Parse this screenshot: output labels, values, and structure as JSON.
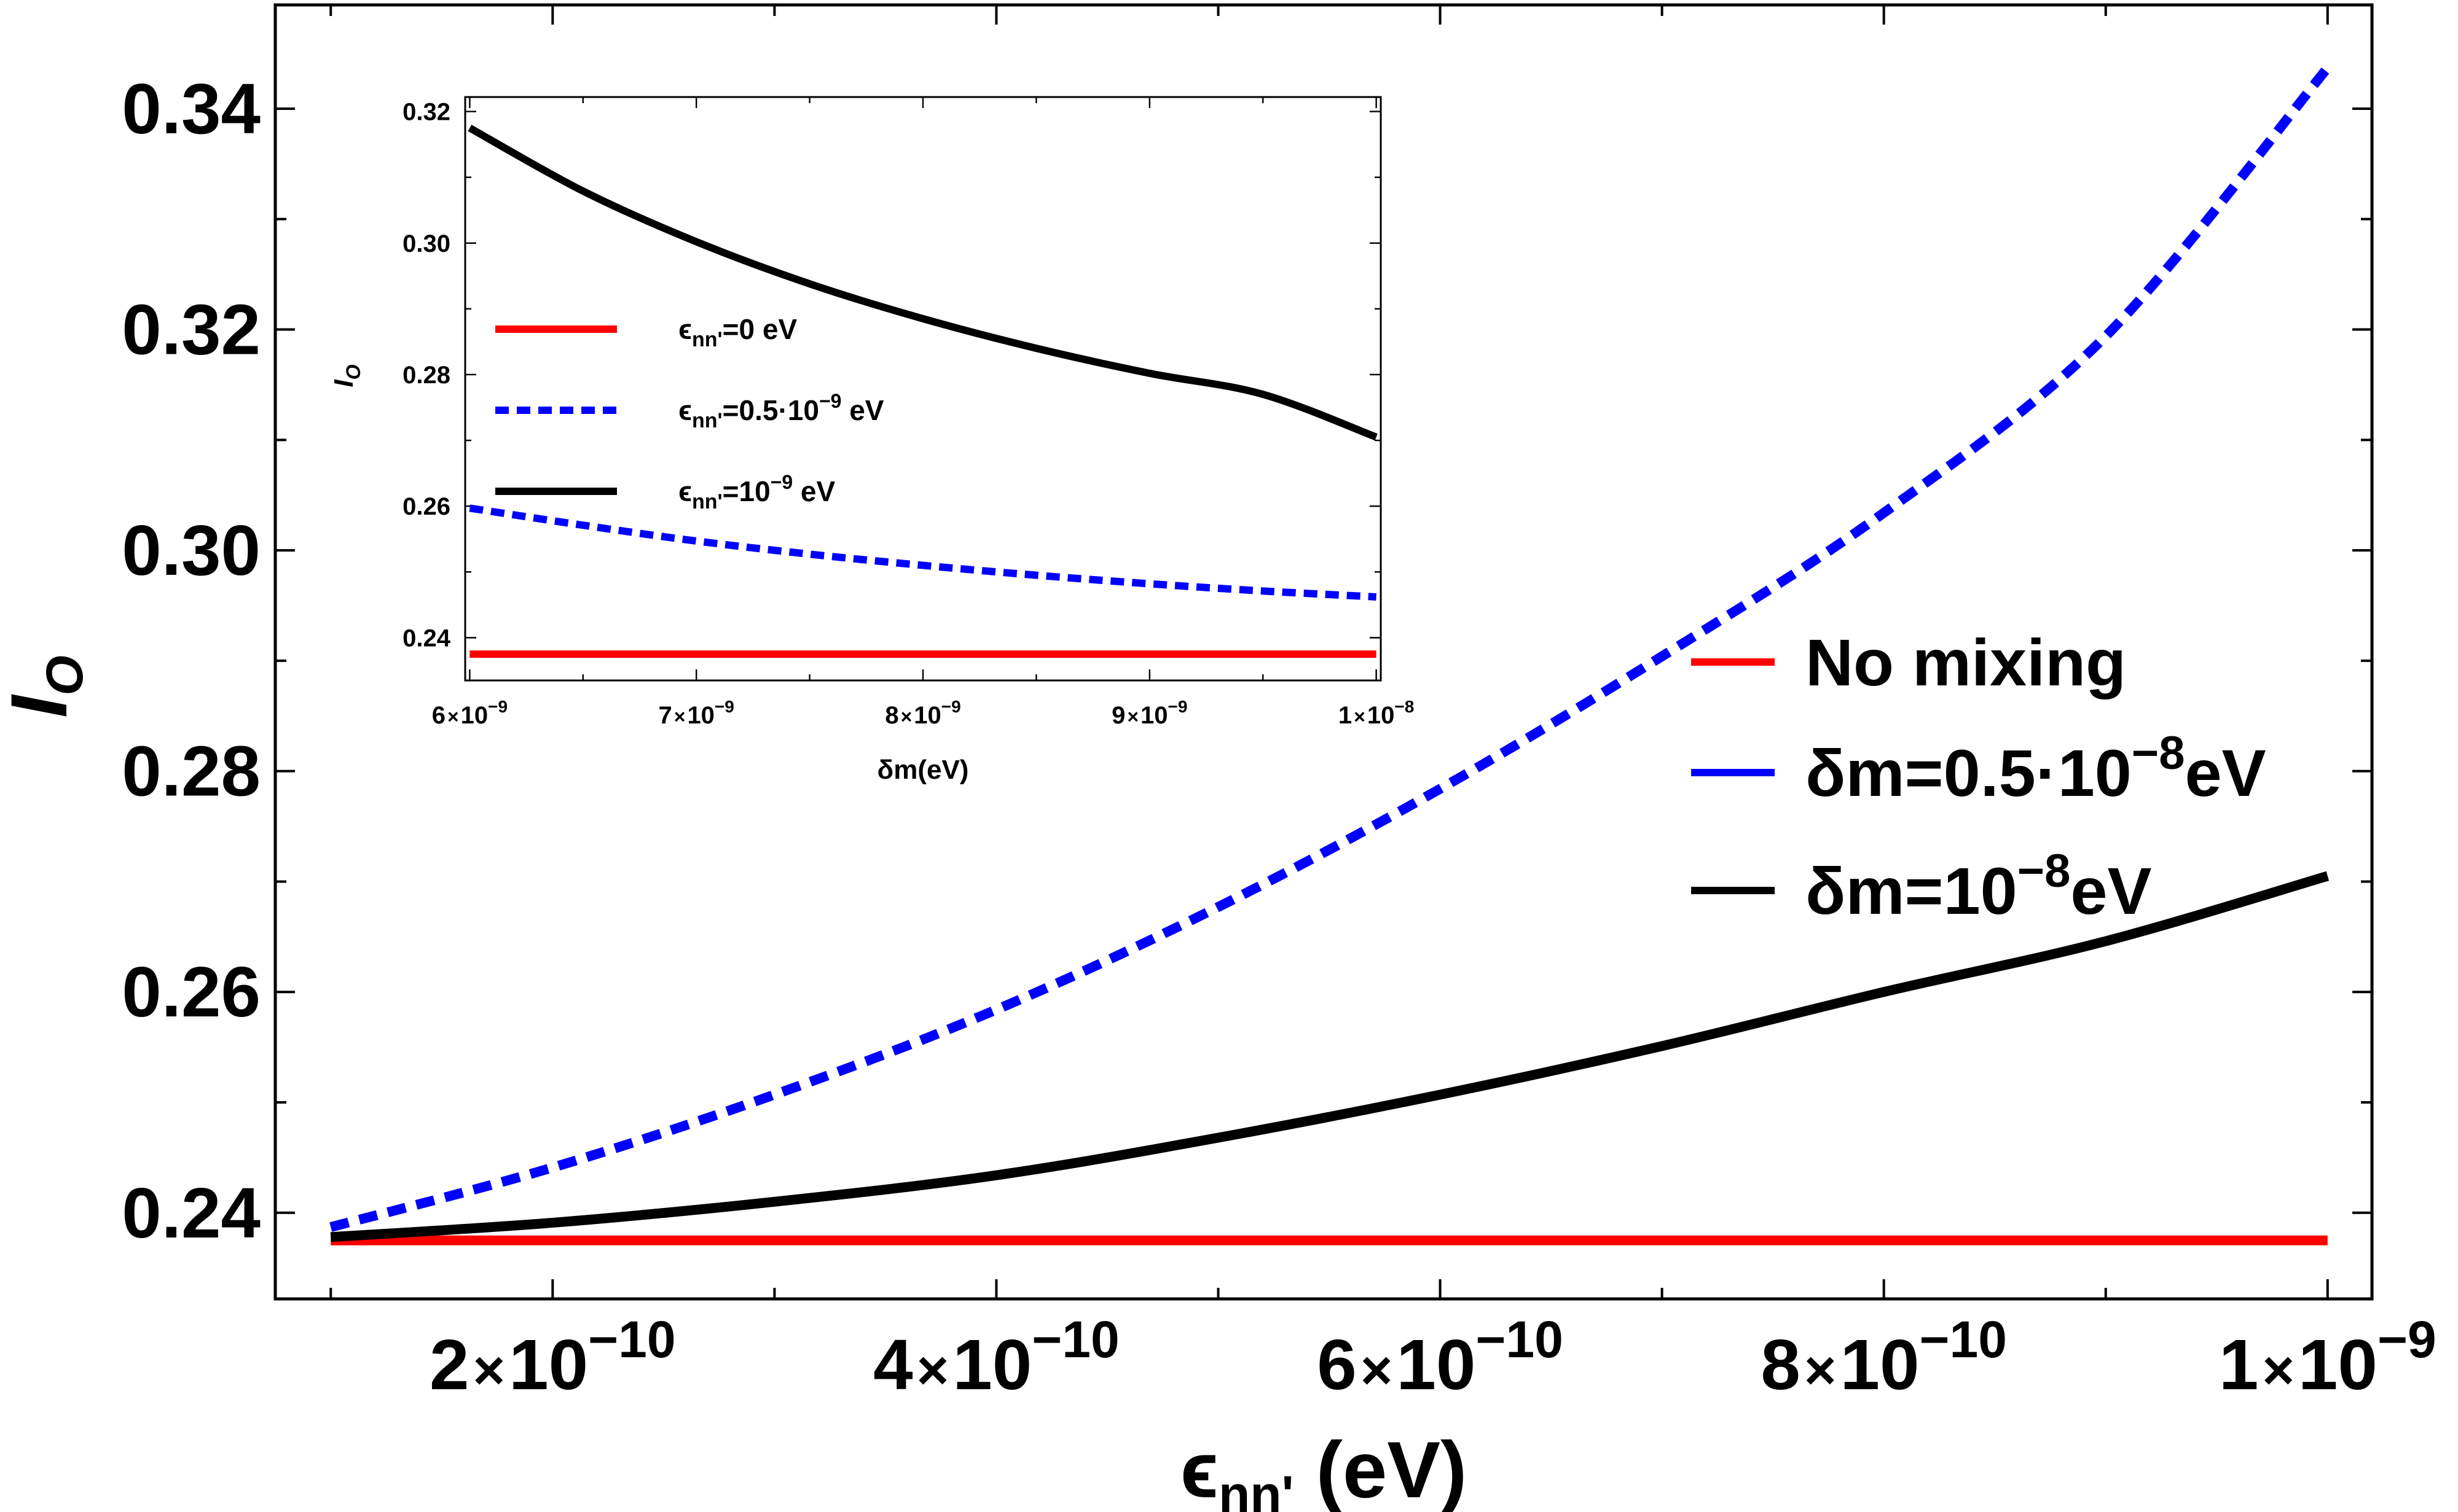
{
  "chart_data": [
    {
      "id": "main",
      "type": "line",
      "title": "",
      "xlabel": "ε_nn' (eV)",
      "xlabel_parts": {
        "symbol": "ϵ",
        "sub": "nn'",
        "rest": " (eV)"
      },
      "ylabel": "I_O",
      "ylabel_parts": {
        "symbol": "I",
        "sub": "O"
      },
      "xlim": [
        7.5e-11,
        1.02e-09
      ],
      "ylim": [
        0.2322,
        0.3494
      ],
      "x_ticks": [
        {
          "value": 2e-10,
          "label_mant": "2",
          "label_exp": "−10"
        },
        {
          "value": 4e-10,
          "label_mant": "4",
          "label_exp": "−10"
        },
        {
          "value": 6e-10,
          "label_mant": "6",
          "label_exp": "−10"
        },
        {
          "value": 8e-10,
          "label_mant": "8",
          "label_exp": "−10"
        },
        {
          "value": 1e-09,
          "label_mant": "1",
          "label_exp": "−9"
        }
      ],
      "x_ticks_label_times": "×",
      "x_ticks_label_base": "10",
      "y_ticks": [
        {
          "value": 0.24,
          "label": "0.24"
        },
        {
          "value": 0.26,
          "label": "0.26"
        },
        {
          "value": 0.28,
          "label": "0.28"
        },
        {
          "value": 0.3,
          "label": "0.30"
        },
        {
          "value": 0.32,
          "label": "0.32"
        },
        {
          "value": 0.34,
          "label": "0.34"
        }
      ],
      "series": [
        {
          "name": "No mixing",
          "color": "#ff0000",
          "dash": "solid",
          "x": [
            1e-10,
            2e-10,
            3e-10,
            4e-10,
            5e-10,
            6e-10,
            7e-10,
            8e-10,
            9e-10,
            1e-09
          ],
          "y": [
            0.2375,
            0.2375,
            0.2375,
            0.2375,
            0.2375,
            0.2375,
            0.2375,
            0.2375,
            0.2375,
            0.2375
          ]
        },
        {
          "name": "δm=0.5·10⁻⁸eV",
          "color": "#0000ff",
          "dash": "dashed",
          "x": [
            1e-10,
            2e-10,
            3e-10,
            4e-10,
            5e-10,
            6e-10,
            7e-10,
            8e-10,
            9e-10,
            1e-09
          ],
          "y": [
            0.2387,
            0.2441,
            0.2507,
            0.2584,
            0.2677,
            0.2784,
            0.2904,
            0.3034,
            0.3194,
            0.3437
          ]
        },
        {
          "name": "δm=10⁻⁸eV",
          "color": "#000000",
          "dash": "solid",
          "x": [
            1e-10,
            2e-10,
            3e-10,
            4e-10,
            5e-10,
            6e-10,
            7e-10,
            8e-10,
            9e-10,
            1e-09
          ],
          "y": [
            0.2378,
            0.2391,
            0.241,
            0.2434,
            0.2468,
            0.2507,
            0.2551,
            0.26,
            0.2646,
            0.2705
          ]
        }
      ],
      "legend": [
        {
          "prefix": "No mixing",
          "exp": "",
          "suffix": "",
          "color": "#ff0000"
        },
        {
          "prefix": "δm=0.5·10",
          "exp": "−8",
          "suffix": "eV",
          "color": "#0000ff"
        },
        {
          "prefix": "δm=10",
          "exp": "−8",
          "suffix": "eV",
          "color": "#000000"
        }
      ],
      "legend_position": "right-center"
    },
    {
      "id": "inset",
      "type": "line",
      "title": "",
      "xlabel": "δm(eV)",
      "ylabel": "I_O",
      "ylabel_parts": {
        "symbol": "I",
        "sub": "O"
      },
      "xlim": [
        5.98e-09,
        1.002e-08
      ],
      "ylim": [
        0.2335,
        0.3222
      ],
      "x_ticks": [
        {
          "value": 6e-09,
          "label_mant": "6",
          "label_exp": "−9"
        },
        {
          "value": 7e-09,
          "label_mant": "7",
          "label_exp": "−9"
        },
        {
          "value": 8e-09,
          "label_mant": "8",
          "label_exp": "−9"
        },
        {
          "value": 9e-09,
          "label_mant": "9",
          "label_exp": "−9"
        },
        {
          "value": 1e-08,
          "label_mant": "1",
          "label_exp": "−8"
        }
      ],
      "x_ticks_label_times": "×",
      "x_ticks_label_base": "10",
      "y_ticks": [
        {
          "value": 0.24,
          "label": "0.24"
        },
        {
          "value": 0.26,
          "label": "0.26"
        },
        {
          "value": 0.28,
          "label": "0.28"
        },
        {
          "value": 0.3,
          "label": "0.30"
        },
        {
          "value": 0.32,
          "label": "0.32"
        }
      ],
      "series": [
        {
          "name": "ε_nn'=0 eV",
          "color": "#ff0000",
          "dash": "solid",
          "x": [
            6e-09,
            7e-09,
            8e-09,
            9e-09,
            1e-08
          ],
          "y": [
            0.2375,
            0.2375,
            0.2375,
            0.2375,
            0.2375
          ]
        },
        {
          "name": "ε_nn'=0.5·10⁻⁹ eV",
          "color": "#0000ff",
          "dash": "dashed",
          "x": [
            6e-09,
            6.5e-09,
            7e-09,
            7.5e-09,
            8e-09,
            8.5e-09,
            9e-09,
            9.5e-09,
            1e-08
          ],
          "y": [
            0.2597,
            0.2571,
            0.2547,
            0.2527,
            0.251,
            0.2495,
            0.2482,
            0.2471,
            0.2462
          ]
        },
        {
          "name": "ε_nn'=10⁻⁹ eV",
          "color": "#000000",
          "dash": "solid",
          "x": [
            6e-09,
            6.5e-09,
            7e-09,
            7.5e-09,
            8e-09,
            8.5e-09,
            9e-09,
            9.5e-09,
            1e-08
          ],
          "y": [
            0.3175,
            0.3079,
            0.3002,
            0.2938,
            0.2885,
            0.284,
            0.2802,
            0.277,
            0.2705
          ]
        }
      ],
      "legend": [
        {
          "prefix": "ϵ",
          "sub": "nn'",
          "mid": "=0 eV",
          "exp": "",
          "suffix": "",
          "color": "#ff0000"
        },
        {
          "prefix": "ϵ",
          "sub": "nn'",
          "mid": "=0.5·10",
          "exp": "−9",
          "suffix": " eV",
          "color": "#0000ff"
        },
        {
          "prefix": "ϵ",
          "sub": "nn'",
          "mid": "=10",
          "exp": "−9",
          "suffix": " eV",
          "color": "#000000"
        }
      ],
      "legend_position": "left-center"
    }
  ]
}
